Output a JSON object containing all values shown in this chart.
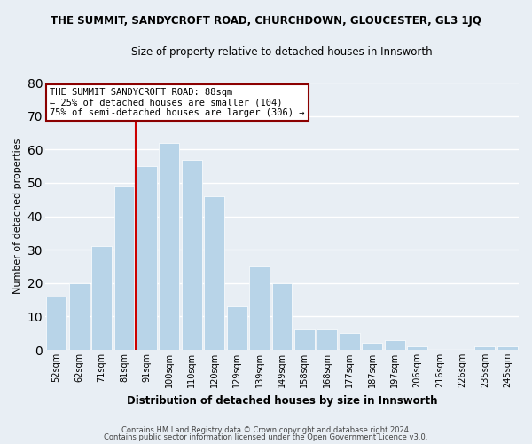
{
  "title": "THE SUMMIT, SANDYCROFT ROAD, CHURCHDOWN, GLOUCESTER, GL3 1JQ",
  "subtitle": "Size of property relative to detached houses in Innsworth",
  "xlabel": "Distribution of detached houses by size in Innsworth",
  "ylabel": "Number of detached properties",
  "bar_color": "#b8d4e8",
  "bar_edge_color": "#ffffff",
  "categories": [
    "52sqm",
    "62sqm",
    "71sqm",
    "81sqm",
    "91sqm",
    "100sqm",
    "110sqm",
    "120sqm",
    "129sqm",
    "139sqm",
    "149sqm",
    "158sqm",
    "168sqm",
    "177sqm",
    "187sqm",
    "197sqm",
    "206sqm",
    "216sqm",
    "226sqm",
    "235sqm",
    "245sqm"
  ],
  "values": [
    16,
    20,
    31,
    49,
    55,
    62,
    57,
    46,
    13,
    25,
    20,
    6,
    6,
    5,
    2,
    3,
    1,
    0,
    0,
    1,
    1
  ],
  "ylim": [
    0,
    80
  ],
  "yticks": [
    0,
    10,
    20,
    30,
    40,
    50,
    60,
    70,
    80
  ],
  "vline_color": "#cc0000",
  "annotation_title": "THE SUMMIT SANDYCROFT ROAD: 88sqm",
  "annotation_line1": "← 25% of detached houses are smaller (104)",
  "annotation_line2": "75% of semi-detached houses are larger (306) →",
  "annotation_box_color": "#ffffff",
  "annotation_box_edge": "#8b0000",
  "footer1": "Contains HM Land Registry data © Crown copyright and database right 2024.",
  "footer2": "Contains public sector information licensed under the Open Government Licence v3.0.",
  "bg_color": "#e8eef4",
  "plot_bg_color": "#e8eef4",
  "grid_color": "#ffffff"
}
